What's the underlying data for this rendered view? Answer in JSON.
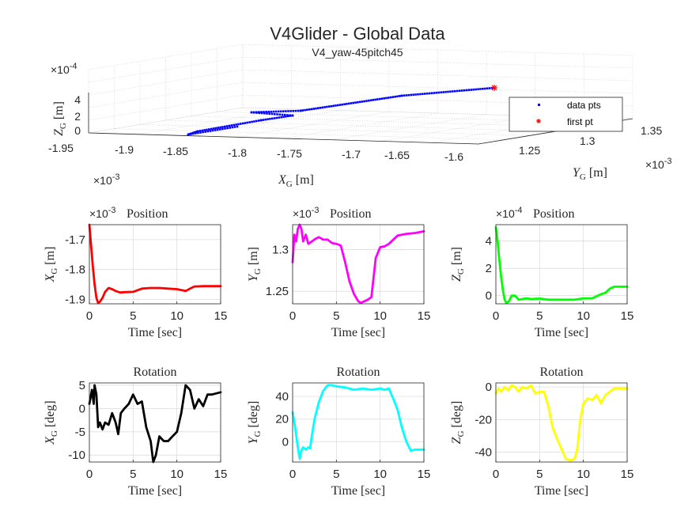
{
  "figure": {
    "title": "V4Glider - Global Data",
    "subtitle": "V4_yaw-45pitch45"
  },
  "chart_data": [
    {
      "id": "3d",
      "type": "scatter",
      "projection": "3d",
      "x_multiplier": "×10",
      "x_exponent": "-3",
      "y_multiplier": "×10",
      "y_exponent": "-3",
      "z_multiplier": "×10",
      "z_exponent": "-4",
      "xlabel_main": "X",
      "xlabel_sub": "G",
      "xlabel_unit": " [m]",
      "ylabel_main": "Y",
      "ylabel_sub": "G",
      "ylabel_unit": " [m]",
      "zlabel_main": "Z",
      "zlabel_sub": "G",
      "zlabel_unit": " [m]",
      "xlim": [
        -1.95,
        -1.6
      ],
      "ylim": [
        1.22,
        1.36
      ],
      "zlim": [
        -0.5,
        5
      ],
      "x_ticks": [
        "-1.95",
        "-1.9",
        "-1.85",
        "-1.8",
        "-1.75",
        "-1.7",
        "-1.65",
        "-1.6"
      ],
      "y_ticks": [
        "1.25",
        "1.3",
        "1.35"
      ],
      "z_ticks": [
        "0",
        "2",
        "4"
      ],
      "grid": true,
      "legend": {
        "location": "right",
        "entries": [
          "data pts",
          "first pt"
        ]
      },
      "series": [
        {
          "name": "data pts",
          "color": "#0000ff",
          "marker": "dot"
        },
        {
          "name": "first pt",
          "color": "#ff0000",
          "marker": "asterisk"
        }
      ]
    },
    {
      "id": "xpos",
      "type": "line",
      "title": "Position",
      "multiplier": "×10",
      "exponent": "-3",
      "xlabel": "Time [sec]",
      "ylabel_main": "X",
      "ylabel_sub": "G",
      "ylabel_unit": " [m]",
      "color": "#ff0000",
      "xlim": [
        0,
        15
      ],
      "ylim": [
        -1.915,
        -1.65
      ],
      "x_ticks": [
        "0",
        "5",
        "10",
        "15"
      ],
      "y_ticks": [
        -1.9,
        -1.8,
        -1.7
      ],
      "y_tick_labels": [
        "-1.9",
        "-1.8",
        "-1.7"
      ],
      "grid": true,
      "x": [
        0,
        0.2,
        0.4,
        0.6,
        0.8,
        1.0,
        1.2,
        1.5,
        1.8,
        2.2,
        2.6,
        3.0,
        3.5,
        4.0,
        5.0,
        6.0,
        7.0,
        8.0,
        9.0,
        10.0,
        10.5,
        11.0,
        11.5,
        12.0,
        13.0,
        14.0,
        15.0
      ],
      "y": [
        -1.65,
        -1.72,
        -1.79,
        -1.85,
        -1.895,
        -1.912,
        -1.908,
        -1.895,
        -1.875,
        -1.862,
        -1.866,
        -1.872,
        -1.877,
        -1.876,
        -1.875,
        -1.864,
        -1.862,
        -1.862,
        -1.864,
        -1.866,
        -1.869,
        -1.872,
        -1.864,
        -1.857,
        -1.856,
        -1.856,
        -1.856
      ]
    },
    {
      "id": "ypos",
      "type": "line",
      "title": "Position",
      "multiplier": "×10",
      "exponent": "-3",
      "xlabel": "Time [sec]",
      "ylabel_main": "Y",
      "ylabel_sub": "G",
      "ylabel_unit": " [m]",
      "color": "#ff00ff",
      "xlim": [
        0,
        15
      ],
      "ylim": [
        1.235,
        1.33
      ],
      "x_ticks": [
        "0",
        "5",
        "10",
        "15"
      ],
      "y_ticks": [
        1.25,
        1.3
      ],
      "y_tick_labels": [
        "1.25",
        "1.3"
      ],
      "grid": true,
      "x": [
        0,
        0.2,
        0.4,
        0.6,
        0.8,
        1.0,
        1.2,
        1.5,
        1.8,
        2.2,
        2.6,
        3.0,
        3.5,
        4.0,
        4.5,
        5.0,
        5.5,
        6.0,
        6.5,
        7.0,
        7.5,
        7.8,
        8.2,
        8.6,
        9.0,
        9.5,
        10.0,
        10.5,
        11.0,
        12.0,
        13.0,
        14.0,
        15.0
      ],
      "y": [
        1.285,
        1.318,
        1.31,
        1.325,
        1.33,
        1.325,
        1.31,
        1.318,
        1.307,
        1.31,
        1.313,
        1.315,
        1.312,
        1.312,
        1.308,
        1.307,
        1.305,
        1.285,
        1.262,
        1.247,
        1.238,
        1.236,
        1.238,
        1.24,
        1.243,
        1.29,
        1.303,
        1.304,
        1.307,
        1.317,
        1.319,
        1.32,
        1.322
      ]
    },
    {
      "id": "zpos",
      "type": "line",
      "title": "Position",
      "multiplier": "×10",
      "exponent": "-4",
      "xlabel": "Time [sec]",
      "ylabel_main": "Z",
      "ylabel_sub": "G",
      "ylabel_unit": " [m]",
      "color": "#00ff00",
      "xlim": [
        0,
        15
      ],
      "ylim": [
        -0.6,
        5.2
      ],
      "x_ticks": [
        "0",
        "5",
        "10",
        "15"
      ],
      "y_ticks": [
        0,
        2,
        4
      ],
      "y_tick_labels": [
        "0",
        "2",
        "4"
      ],
      "grid": true,
      "x": [
        0,
        0.2,
        0.4,
        0.6,
        0.8,
        1.0,
        1.2,
        1.5,
        1.8,
        2.2,
        2.6,
        3.0,
        3.5,
        4.0,
        5.0,
        6.0,
        7.0,
        8.0,
        9.0,
        10.0,
        10.5,
        11.0,
        11.5,
        12.0,
        12.5,
        13.0,
        13.5,
        14.0,
        15.0
      ],
      "y": [
        5.0,
        4.0,
        2.6,
        1.4,
        0.4,
        -0.3,
        -0.55,
        -0.4,
        0.0,
        0.0,
        -0.3,
        -0.25,
        -0.2,
        -0.25,
        -0.22,
        -0.3,
        -0.3,
        -0.3,
        -0.3,
        -0.2,
        -0.2,
        -0.2,
        -0.05,
        0.1,
        0.2,
        0.5,
        0.65,
        0.65,
        0.65
      ]
    },
    {
      "id": "xrot",
      "type": "line",
      "title": "Rotation",
      "xlabel": "Time [sec]",
      "ylabel_main": "X",
      "ylabel_sub": "G",
      "ylabel_unit": " [deg]",
      "color": "#000000",
      "xlim": [
        0,
        15
      ],
      "ylim": [
        -11.5,
        5.5
      ],
      "x_ticks": [
        "0",
        "5",
        "10",
        "15"
      ],
      "y_ticks": [
        -10,
        -5,
        0,
        5
      ],
      "y_tick_labels": [
        "-10",
        "-5",
        "0",
        "5"
      ],
      "grid": true,
      "x": [
        0,
        0.3,
        0.5,
        0.6,
        0.8,
        1.0,
        1.2,
        1.5,
        1.8,
        2.2,
        2.6,
        3.0,
        3.3,
        3.6,
        4.0,
        4.5,
        5.0,
        5.5,
        6.0,
        6.5,
        7.0,
        7.3,
        7.6,
        8.0,
        8.5,
        9.0,
        9.5,
        10.0,
        10.5,
        11.0,
        11.5,
        12.0,
        12.5,
        13.0,
        13.5,
        14.0,
        15.0
      ],
      "y": [
        1,
        4,
        1,
        5,
        3,
        -4,
        -3,
        -4.5,
        -3,
        -3.5,
        -1,
        -3,
        -5.5,
        -1,
        0,
        1,
        3,
        1,
        1.5,
        -4,
        -7,
        -11.5,
        -10,
        -6,
        -7,
        -7,
        -6,
        -5,
        -1,
        5,
        4,
        0,
        2,
        0.5,
        3,
        3,
        3.5
      ]
    },
    {
      "id": "yrot",
      "type": "line",
      "title": "Rotation",
      "xlabel": "Time [sec]",
      "ylabel_main": "Y",
      "ylabel_sub": "G",
      "ylabel_unit": " [deg]",
      "color": "#00ffff",
      "xlim": [
        0,
        15
      ],
      "ylim": [
        -18,
        52
      ],
      "x_ticks": [
        "0",
        "5",
        "10",
        "15"
      ],
      "y_ticks": [
        0,
        20,
        40
      ],
      "y_tick_labels": [
        "0",
        "20",
        "40"
      ],
      "grid": true,
      "x": [
        0,
        0.3,
        0.6,
        0.8,
        1.0,
        1.2,
        1.5,
        1.8,
        2.0,
        2.2,
        2.5,
        3.0,
        3.5,
        4.0,
        4.5,
        5.0,
        6.0,
        7.0,
        8.0,
        9.0,
        10.0,
        10.5,
        11.0,
        11.5,
        12.0,
        12.5,
        13.0,
        13.5,
        14.0,
        15.0
      ],
      "y": [
        26,
        12,
        -5,
        -15,
        -8,
        -5,
        -7,
        -5,
        -6,
        5,
        20,
        35,
        45,
        50,
        50,
        49,
        48,
        46,
        47,
        46,
        47,
        46,
        47,
        38,
        28,
        12,
        0,
        -8,
        -7,
        -7
      ]
    },
    {
      "id": "zrot",
      "type": "line",
      "title": "Rotation",
      "xlabel": "Time [sec]",
      "ylabel_main": "Z",
      "ylabel_sub": "G",
      "ylabel_unit": " [deg]",
      "color": "#ffff00",
      "xlim": [
        0,
        15
      ],
      "ylim": [
        -46,
        2.5
      ],
      "x_ticks": [
        "0",
        "5",
        "10",
        "15"
      ],
      "y_ticks": [
        -40,
        -20,
        0
      ],
      "y_tick_labels": [
        "-40",
        "-20",
        "0"
      ],
      "grid": true,
      "x": [
        0,
        0.3,
        0.6,
        1.0,
        1.4,
        1.8,
        2.2,
        2.6,
        3.0,
        3.5,
        4.0,
        4.5,
        5.0,
        5.5,
        6.0,
        6.5,
        7.0,
        7.5,
        8.0,
        8.5,
        9.0,
        9.3,
        9.6,
        10.0,
        10.5,
        11.0,
        11.5,
        12.0,
        12.5,
        13.0,
        13.5,
        14.0,
        15.0
      ],
      "y": [
        -4,
        -1,
        -3,
        0,
        -2,
        1,
        0,
        -3,
        0,
        -1,
        1,
        -4,
        -3,
        -3,
        -12,
        -25,
        -32,
        -38,
        -44,
        -45,
        -44,
        -38,
        -22,
        -10,
        -7,
        -8,
        -5,
        -10,
        -5,
        -3,
        -1,
        -1,
        -1
      ]
    }
  ]
}
